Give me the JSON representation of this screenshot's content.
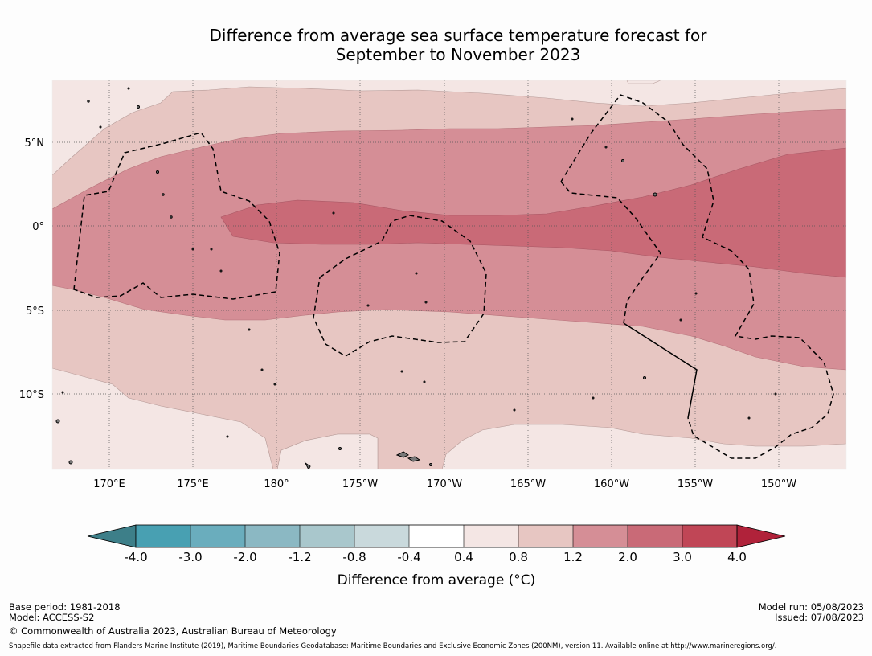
{
  "title": {
    "line1": "Difference from average sea surface temperature forecast for",
    "line2": "September to November 2023"
  },
  "map": {
    "lon_labels": [
      "170°E",
      "175°E",
      "180°",
      "175°W",
      "170°W",
      "165°W",
      "160°W",
      "155°W",
      "150°W"
    ],
    "lat_labels": [
      "5°N",
      "0°",
      "5°S",
      "10°S"
    ],
    "colors": {
      "band_0_4_0_8": "#f4e6e4",
      "band_0_8_1_2": "#e7c6c2",
      "band_1_2_2_0": "#d58e96",
      "band_2_0_3_0": "#c96a77"
    }
  },
  "colorbar": {
    "title": "Difference from average (°C)",
    "tick_labels": [
      "-4.0",
      "-3.0",
      "-2.0",
      "-1.2",
      "-0.8",
      "-0.4",
      "0.4",
      "0.8",
      "1.2",
      "2.0",
      "3.0",
      "4.0"
    ],
    "colors": {
      "below": "#3d7f89",
      "c1": "#48a0b2",
      "c2": "#6aadbd",
      "c3": "#8bb8c3",
      "c4": "#a9c7cc",
      "c5": "#c9d9dc",
      "c6": "#ffffff",
      "c7": "#f4e6e4",
      "c8": "#e7c6c2",
      "c9": "#d58e96",
      "c10": "#c96a77",
      "c11": "#c04656",
      "above": "#b0223a"
    }
  },
  "footer": {
    "base_period": "Base period: 1981-2018",
    "model": "Model: ACCESS-S2",
    "model_run": "Model run: 05/08/2023",
    "issued": "Issued: 07/08/2023",
    "copyright": "© Commonwealth of Australia 2023, Australian Bureau of Meteorology",
    "shapefile": "Shapefile data extracted from Flanders Marine Institute (2019), Maritime Boundaries Geodatabase: Maritime Boundaries and Exclusive Economic Zones (200NM), version 11. Available online at http://www.marineregions.org/."
  }
}
